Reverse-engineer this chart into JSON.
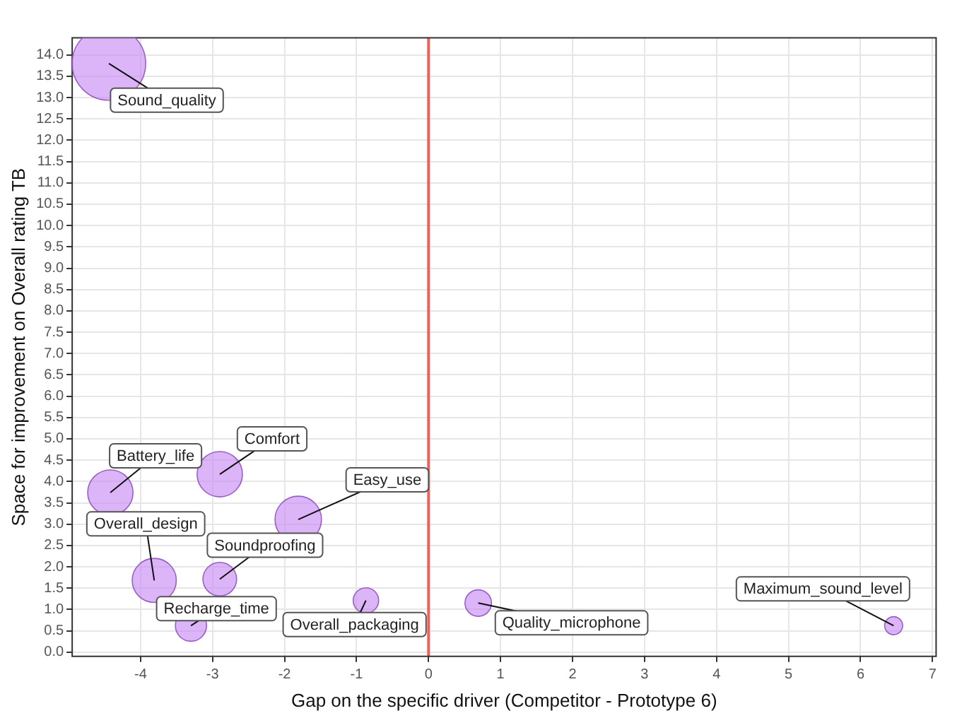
{
  "chart_data": {
    "type": "bubble",
    "xlabel": "Gap on the specific driver (Competitor - Prototype 6)",
    "ylabel": "Space for improvement on Overall rating TB",
    "series": [
      {
        "color": "#c98cf5",
        "x": [
          -4.44,
          -4.42,
          -2.9,
          -1.81,
          -3.81,
          -2.9,
          -3.3,
          -0.87,
          0.69,
          6.46
        ],
        "values": [
          13.8,
          3.74,
          4.17,
          3.11,
          1.68,
          1.71,
          0.62,
          1.21,
          1.15,
          0.62
        ],
        "sizes": [
          1,
          0.38,
          0.38,
          0.4,
          0.36,
          0.21,
          0.18,
          0.12,
          0.13,
          0.06
        ]
      }
    ],
    "annotations": [
      {
        "text": "Sound_quality",
        "x": -4.44,
        "y": 13.8
      },
      {
        "text": "Battery_life",
        "x": -4.42,
        "y": 3.74
      },
      {
        "text": "Comfort",
        "x": -2.9,
        "y": 4.17
      },
      {
        "text": "Easy_use",
        "x": -1.81,
        "y": 3.11
      },
      {
        "text": "Overall_design",
        "x": -3.81,
        "y": 1.68
      },
      {
        "text": "Soundproofing",
        "x": -2.9,
        "y": 1.71
      },
      {
        "text": "Recharge_time",
        "x": -3.3,
        "y": 0.62
      },
      {
        "text": "Overall_packaging",
        "x": -0.87,
        "y": 1.21
      },
      {
        "text": "Quality_microphone",
        "x": 0.69,
        "y": 1.15
      },
      {
        "text": "Maximum_sound_level",
        "x": 6.46,
        "y": 0.62
      }
    ],
    "ref_lines": [
      {
        "axis": "x",
        "value": 0,
        "color": "#f0605a"
      }
    ],
    "xlim": [
      -4.95,
      7.05
    ],
    "xticks": [
      -4,
      -3,
      -2,
      -1,
      0,
      1,
      2,
      3,
      4,
      5,
      6,
      7
    ],
    "ylim": [
      -0.1,
      14.4
    ],
    "yticks": [
      {
        "value": 0,
        "label": "0.0"
      },
      {
        "value": 0.5,
        "label": "0.5"
      },
      {
        "value": 1,
        "label": "1.0"
      },
      {
        "value": 1.5,
        "label": "1.5"
      },
      {
        "value": 2,
        "label": "2.0"
      },
      {
        "value": 2.5,
        "label": "2.5"
      },
      {
        "value": 3,
        "label": "3.0"
      },
      {
        "value": 3.5,
        "label": "3.5"
      },
      {
        "value": 4,
        "label": "4.0"
      },
      {
        "value": 4.5,
        "label": "4.5"
      },
      {
        "value": 5,
        "label": "5.0"
      },
      {
        "value": 5.5,
        "label": "5.5"
      },
      {
        "value": 6,
        "label": "6.0"
      },
      {
        "value": 6.5,
        "label": "6.5"
      },
      {
        "value": 7,
        "label": "7.0"
      },
      {
        "value": 7.5,
        "label": "7.5"
      },
      {
        "value": 8,
        "label": "8.0"
      },
      {
        "value": 8.5,
        "label": "8.5"
      },
      {
        "value": 9,
        "label": "9.0"
      },
      {
        "value": 9.5,
        "label": "9.5"
      },
      {
        "value": 10,
        "label": "10.0"
      },
      {
        "value": 10.5,
        "label": "10.5"
      },
      {
        "value": 11,
        "label": "11.0"
      },
      {
        "value": 11.5,
        "label": "11.5"
      },
      {
        "value": 12,
        "label": "12.0"
      },
      {
        "value": 12.5,
        "label": "12.5"
      },
      {
        "value": 13,
        "label": "13.0"
      },
      {
        "value": 13.5,
        "label": "13.5"
      },
      {
        "value": 14,
        "label": "14.0"
      }
    ],
    "grid": true,
    "legend": false
  }
}
